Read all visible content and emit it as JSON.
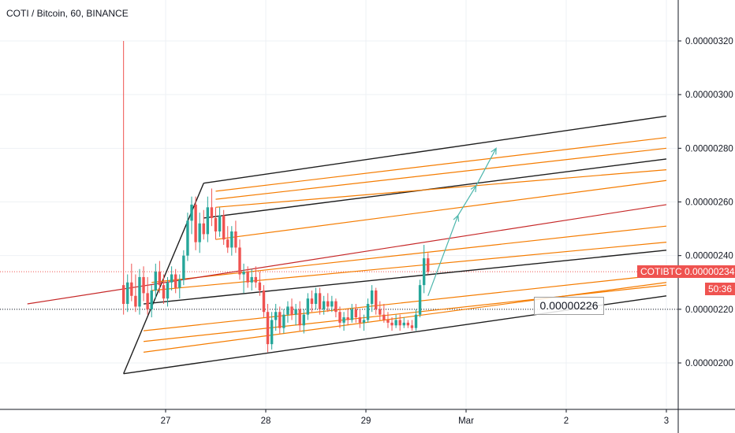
{
  "header": {
    "title": "COTI / Bitcoin, 60, BINANCE"
  },
  "colors": {
    "up": "#26a69a",
    "down": "#ef5350",
    "grid": "#eef1f4",
    "axis": "#131722",
    "channel_black": "#1e1e1e",
    "channel_orange": "#f57c00",
    "median": "#c62828",
    "arrow": "#4db6ac",
    "price_tag": "#ef5350"
  },
  "chart_data": {
    "type": "candlestick",
    "title": "COTI / Bitcoin, 60, BINANCE",
    "symbol": "COTIBTC",
    "interval": "60",
    "exchange": "BINANCE",
    "y_ticks": [
      "0.00000320",
      "0.00000300",
      "0.00000280",
      "0.00000260",
      "0.00000240",
      "0.00000220",
      "0.00000200"
    ],
    "y_tick_values": [
      320,
      300,
      280,
      260,
      240,
      220,
      200
    ],
    "y_unit_note": "×1e-8 BTC",
    "ylim": [
      184,
      333
    ],
    "x_tick_labels": [
      "27",
      "28",
      "29",
      "Mar",
      "2",
      "3"
    ],
    "x_tick_days": [
      27,
      28,
      29,
      30,
      31,
      32
    ],
    "xlim": [
      25.62,
      32.0
    ],
    "last_price": "0.00000234",
    "countdown": "50:36",
    "annotation_price": "0.00000226",
    "dotted_price_level": 220,
    "candles": [
      [
        26.58,
        229,
        320,
        218,
        222
      ],
      [
        26.62,
        222,
        233,
        219,
        230
      ],
      [
        26.66,
        230,
        237,
        223,
        225
      ],
      [
        26.7,
        225,
        233,
        219,
        221
      ],
      [
        26.74,
        221,
        235,
        218,
        232
      ],
      [
        26.78,
        232,
        236,
        223,
        226
      ],
      [
        26.82,
        226,
        232,
        218,
        220
      ],
      [
        26.86,
        220,
        229,
        217,
        227
      ],
      [
        26.9,
        227,
        237,
        224,
        234
      ],
      [
        26.94,
        234,
        238,
        226,
        229
      ],
      [
        26.98,
        229,
        233,
        222,
        224
      ],
      [
        27.02,
        224,
        232,
        221,
        230
      ],
      [
        27.06,
        230,
        236,
        227,
        233
      ],
      [
        27.1,
        233,
        235,
        226,
        228
      ],
      [
        27.14,
        228,
        233,
        224,
        231
      ],
      [
        27.18,
        231,
        242,
        229,
        240
      ],
      [
        27.22,
        240,
        256,
        238,
        253
      ],
      [
        27.26,
        253,
        262,
        248,
        259
      ],
      [
        27.3,
        259,
        262,
        242,
        245
      ],
      [
        27.34,
        245,
        256,
        241,
        252
      ],
      [
        27.38,
        252,
        257,
        246,
        248
      ],
      [
        27.42,
        248,
        262,
        245,
        258
      ],
      [
        27.46,
        258,
        265,
        251,
        254
      ],
      [
        27.5,
        254,
        258,
        246,
        249
      ],
      [
        27.54,
        249,
        258,
        247,
        255
      ],
      [
        27.58,
        255,
        257,
        244,
        246
      ],
      [
        27.62,
        246,
        251,
        241,
        243
      ],
      [
        27.66,
        243,
        251,
        240,
        249
      ],
      [
        27.7,
        249,
        253,
        241,
        243
      ],
      [
        27.74,
        243,
        246,
        231,
        233
      ],
      [
        27.78,
        233,
        237,
        226,
        234
      ],
      [
        27.82,
        234,
        236,
        228,
        230
      ],
      [
        27.86,
        230,
        235,
        227,
        232
      ],
      [
        27.9,
        232,
        236,
        228,
        230
      ],
      [
        27.94,
        230,
        234,
        225,
        227
      ],
      [
        27.98,
        227,
        229,
        217,
        219
      ],
      [
        28.02,
        219,
        222,
        204,
        207
      ],
      [
        28.06,
        207,
        219,
        205,
        216
      ],
      [
        28.1,
        216,
        222,
        212,
        219
      ],
      [
        28.14,
        219,
        221,
        211,
        213
      ],
      [
        28.18,
        213,
        220,
        211,
        218
      ],
      [
        28.22,
        218,
        223,
        215,
        221
      ],
      [
        28.26,
        221,
        224,
        216,
        218
      ],
      [
        28.3,
        218,
        222,
        214,
        220
      ],
      [
        28.34,
        220,
        223,
        212,
        214
      ],
      [
        28.38,
        214,
        220,
        211,
        218
      ],
      [
        28.42,
        218,
        226,
        216,
        224
      ],
      [
        28.46,
        224,
        227,
        219,
        222
      ],
      [
        28.5,
        222,
        228,
        220,
        226
      ],
      [
        28.54,
        226,
        228,
        218,
        220
      ],
      [
        28.58,
        220,
        225,
        218,
        223
      ],
      [
        28.62,
        223,
        226,
        219,
        221
      ],
      [
        28.66,
        221,
        225,
        219,
        223
      ],
      [
        28.7,
        223,
        224,
        217,
        219
      ],
      [
        28.74,
        219,
        221,
        213,
        215
      ],
      [
        28.78,
        215,
        219,
        212,
        217
      ],
      [
        28.82,
        217,
        220,
        214,
        216
      ],
      [
        28.86,
        216,
        222,
        215,
        220
      ],
      [
        28.9,
        220,
        222,
        215,
        217
      ],
      [
        28.94,
        217,
        220,
        213,
        215
      ],
      [
        28.98,
        215,
        218,
        212,
        216
      ],
      [
        29.02,
        216,
        224,
        215,
        222
      ],
      [
        29.06,
        222,
        229,
        219,
        227
      ],
      [
        29.1,
        227,
        228,
        218,
        220
      ],
      [
        29.14,
        220,
        223,
        216,
        218
      ],
      [
        29.18,
        218,
        222,
        215,
        216
      ],
      [
        29.22,
        216,
        219,
        213,
        215
      ],
      [
        29.26,
        215,
        217,
        212,
        214
      ],
      [
        29.3,
        214,
        218,
        213,
        216
      ],
      [
        29.34,
        216,
        218,
        212,
        214
      ],
      [
        29.38,
        214,
        217,
        213,
        215
      ],
      [
        29.42,
        215,
        216,
        213,
        214
      ],
      [
        29.46,
        214,
        216,
        212,
        213
      ],
      [
        29.5,
        213,
        220,
        212,
        218
      ],
      [
        29.54,
        218,
        231,
        217,
        229
      ],
      [
        29.58,
        229,
        244,
        226,
        239
      ],
      [
        29.62,
        239,
        241,
        233,
        234
      ]
    ],
    "channel_lines": [
      {
        "style": "black",
        "x": [
          26.58,
          27.38
        ],
        "y": [
          196,
          267
        ]
      },
      {
        "style": "black",
        "x": [
          27.38,
          32.0
        ],
        "y": [
          267,
          292
        ]
      },
      {
        "style": "black",
        "x": [
          27.38,
          32.0
        ],
        "y": [
          254,
          276
        ]
      },
      {
        "style": "black",
        "x": [
          26.78,
          32.0
        ],
        "y": [
          222,
          242
        ]
      },
      {
        "style": "black",
        "x": [
          26.58,
          32.0
        ],
        "y": [
          196,
          225
        ]
      },
      {
        "style": "orange",
        "x": [
          27.5,
          32.0
        ],
        "y": [
          264,
          284
        ]
      },
      {
        "style": "orange",
        "x": [
          27.5,
          32.0
        ],
        "y": [
          261,
          280
        ]
      },
      {
        "style": "orange",
        "x": [
          27.5,
          32.0
        ],
        "y": [
          258,
          272
        ]
      },
      {
        "style": "orange",
        "x": [
          27.5,
          32.0
        ],
        "y": [
          246,
          268
        ]
      },
      {
        "style": "orange",
        "x": [
          26.86,
          32.0
        ],
        "y": [
          230,
          251
        ]
      },
      {
        "style": "orange",
        "x": [
          26.86,
          32.0
        ],
        "y": [
          227,
          245
        ]
      },
      {
        "style": "orange",
        "x": [
          26.78,
          32.0
        ],
        "y": [
          212,
          233
        ]
      },
      {
        "style": "orange",
        "x": [
          26.78,
          32.0
        ],
        "y": [
          208,
          229
        ]
      },
      {
        "style": "orange",
        "x": [
          26.78,
          32.0
        ],
        "y": [
          204,
          230
        ]
      },
      {
        "style": "median",
        "x": [
          25.62,
          32.0
        ],
        "y": [
          222,
          259
        ]
      }
    ],
    "projection_arrow": {
      "x": [
        29.62,
        29.92,
        30.1,
        30.3
      ],
      "y": [
        225,
        255,
        266,
        280
      ]
    }
  }
}
